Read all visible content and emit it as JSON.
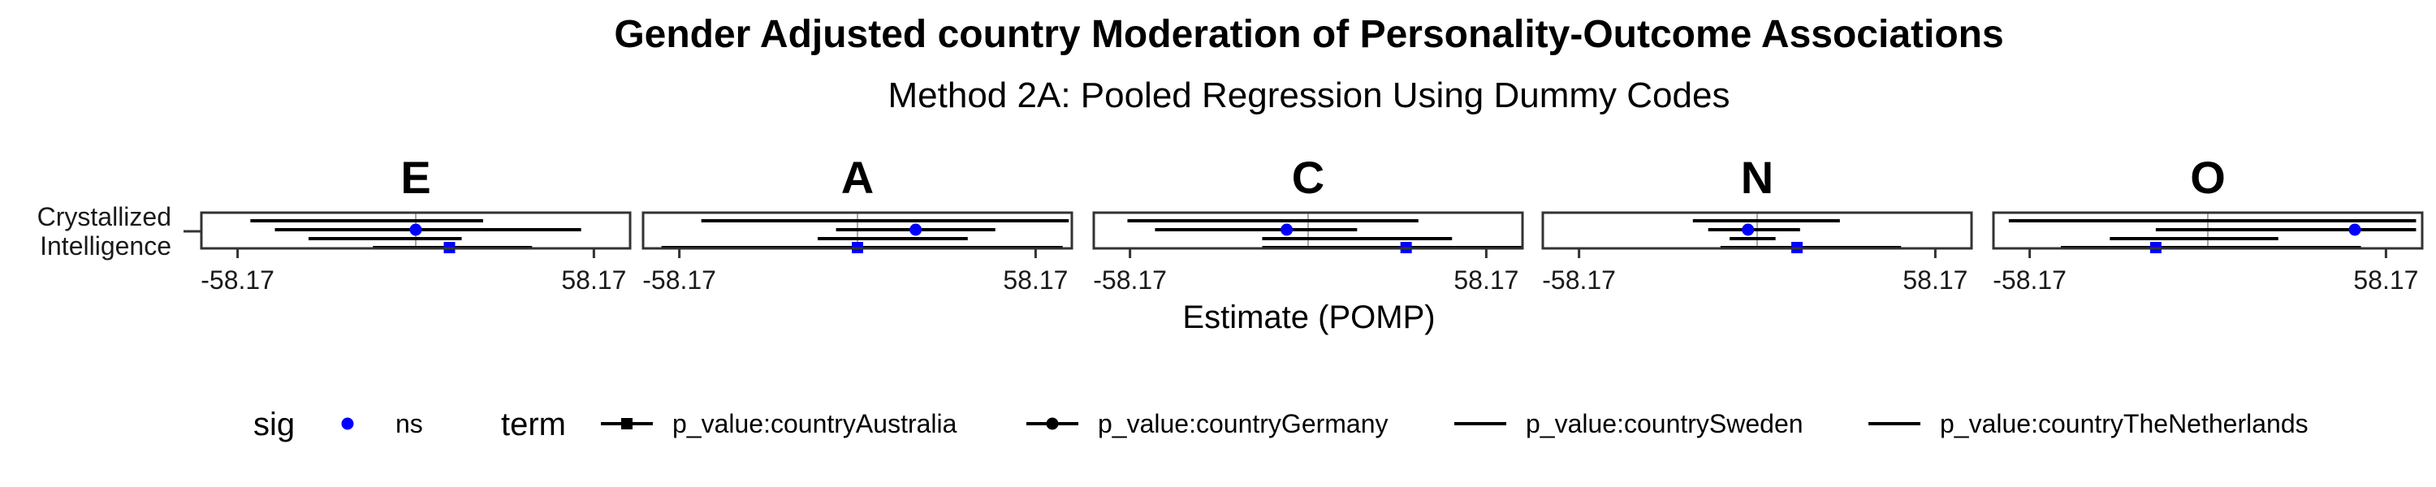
{
  "chart_data": {
    "type": "forest",
    "title": "Gender Adjusted country Moderation of Personality-Outcome Associations",
    "subtitle": "Method 2A: Pooled Regression Using Dummy Codes",
    "xlabel": "Estimate (POMP)",
    "ylabel": "",
    "xlim": [
      -70,
      70
    ],
    "x_ticks": [
      -58.17,
      58.17
    ],
    "x_tick_labels": [
      "-58.17",
      "58.17"
    ],
    "y_categories": [
      "Crystallized\nIntelligence"
    ],
    "panels": [
      {
        "label": "E",
        "series": [
          {
            "term": "p_value:countrySweden",
            "estimate": null,
            "ci": [
              -54,
              22
            ],
            "sig": null
          },
          {
            "term": "p_value:countryGermany",
            "estimate": 0,
            "ci": [
              -46,
              54
            ],
            "sig": "ns"
          },
          {
            "term": "p_value:countryTheNetherlands",
            "estimate": null,
            "ci": [
              -35,
              15
            ],
            "sig": null
          },
          {
            "term": "p_value:countryAustralia",
            "estimate": 11,
            "ci": [
              -14,
              38
            ],
            "sig": "ns"
          }
        ]
      },
      {
        "label": "A",
        "series": [
          {
            "term": "p_value:countrySweden",
            "estimate": null,
            "ci": [
              -51,
              69
            ],
            "sig": null
          },
          {
            "term": "p_value:countryGermany",
            "estimate": 19,
            "ci": [
              -7,
              45
            ],
            "sig": "ns"
          },
          {
            "term": "p_value:countryTheNetherlands",
            "estimate": null,
            "ci": [
              -13,
              36
            ],
            "sig": null
          },
          {
            "term": "p_value:countryAustralia",
            "estimate": 0,
            "ci": [
              -64,
              67
            ],
            "sig": "ns"
          }
        ]
      },
      {
        "label": "C",
        "series": [
          {
            "term": "p_value:countrySweden",
            "estimate": null,
            "ci": [
              -59,
              36
            ],
            "sig": null
          },
          {
            "term": "p_value:countryGermany",
            "estimate": -7,
            "ci": [
              -50,
              16
            ],
            "sig": "ns"
          },
          {
            "term": "p_value:countryTheNetherlands",
            "estimate": null,
            "ci": [
              -15,
              47
            ],
            "sig": null
          },
          {
            "term": "p_value:countryAustralia",
            "estimate": 32,
            "ci": [
              -15,
              70
            ],
            "sig": "ns"
          }
        ]
      },
      {
        "label": "N",
        "series": [
          {
            "term": "p_value:countrySweden",
            "estimate": null,
            "ci": [
              -21,
              27
            ],
            "sig": null
          },
          {
            "term": "p_value:countryGermany",
            "estimate": -3,
            "ci": [
              -16,
              14
            ],
            "sig": "ns"
          },
          {
            "term": "p_value:countryTheNetherlands",
            "estimate": null,
            "ci": [
              -9,
              6
            ],
            "sig": null
          },
          {
            "term": "p_value:countryAustralia",
            "estimate": 13,
            "ci": [
              -12,
              47
            ],
            "sig": "ns"
          }
        ]
      },
      {
        "label": "O",
        "series": [
          {
            "term": "p_value:countrySweden",
            "estimate": null,
            "ci": [
              -65,
              68
            ],
            "sig": null
          },
          {
            "term": "p_value:countryGermany",
            "estimate": 48,
            "ci": [
              -17,
              68
            ],
            "sig": "ns"
          },
          {
            "term": "p_value:countryTheNetherlands",
            "estimate": null,
            "ci": [
              -32,
              23
            ],
            "sig": null
          },
          {
            "term": "p_value:countryAustralia",
            "estimate": -17,
            "ci": [
              -48,
              50
            ],
            "sig": "ns"
          }
        ]
      }
    ],
    "legend": {
      "placement": "bottom",
      "sig": {
        "title": "sig",
        "items": [
          {
            "label": "ns",
            "color": "#0000ff"
          }
        ]
      },
      "term": {
        "title": "term",
        "items": [
          {
            "label": "p_value:countryAustralia",
            "shape": "square"
          },
          {
            "label": "p_value:countryGermany",
            "shape": "circle"
          },
          {
            "label": "p_value:countrySweden",
            "shape": "none"
          },
          {
            "label": "p_value:countryTheNetherlands",
            "shape": "none"
          }
        ]
      }
    },
    "colors": {
      "point": "#0000ff",
      "line": "#000000",
      "zero_line": "#a6a6a6"
    },
    "grid": false
  }
}
